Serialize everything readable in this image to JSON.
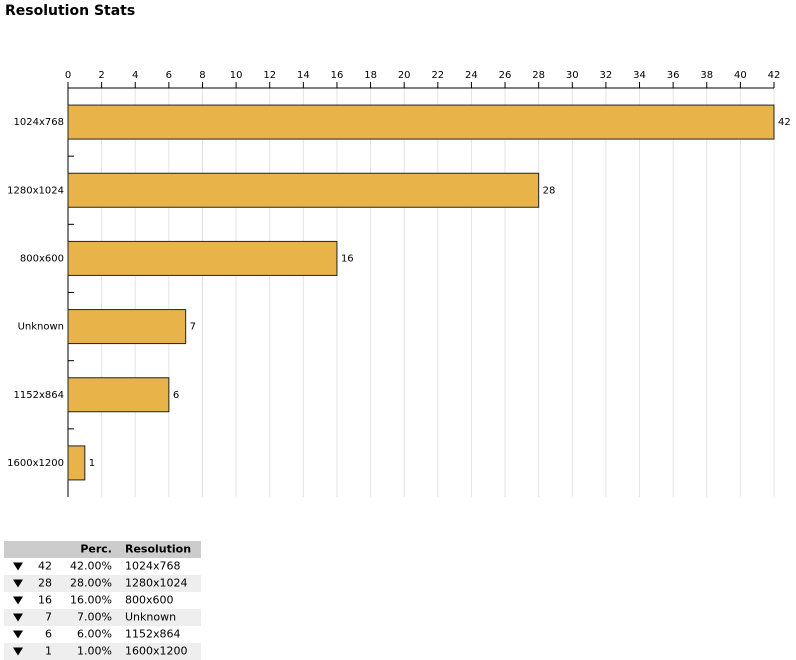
{
  "header": {
    "title": "Resolution Stats"
  },
  "chart_data": {
    "type": "bar",
    "orientation": "horizontal",
    "categories": [
      "1024x768",
      "1280x1024",
      "800x600",
      "Unknown",
      "1152x864",
      "1600x1200"
    ],
    "values": [
      42,
      28,
      16,
      7,
      6,
      1
    ],
    "color": "#e8b44a",
    "xlim": [
      0,
      42
    ],
    "xticks": [
      0,
      2,
      4,
      6,
      8,
      10,
      12,
      14,
      16,
      18,
      20,
      22,
      24,
      26,
      28,
      30,
      32,
      34,
      36,
      38,
      40,
      42
    ],
    "grid": true
  },
  "table": {
    "columns": [
      "Perc.",
      "Resolution"
    ],
    "rows": [
      [
        42,
        "42.00%",
        "1024x768"
      ],
      [
        28,
        "28.00%",
        "1280x1024"
      ],
      [
        16,
        "16.00%",
        "800x600"
      ],
      [
        7,
        "7.00%",
        "Unknown"
      ],
      [
        6,
        "6.00%",
        "1152x864"
      ],
      [
        1,
        "1.00%",
        "1600x1200"
      ]
    ]
  }
}
